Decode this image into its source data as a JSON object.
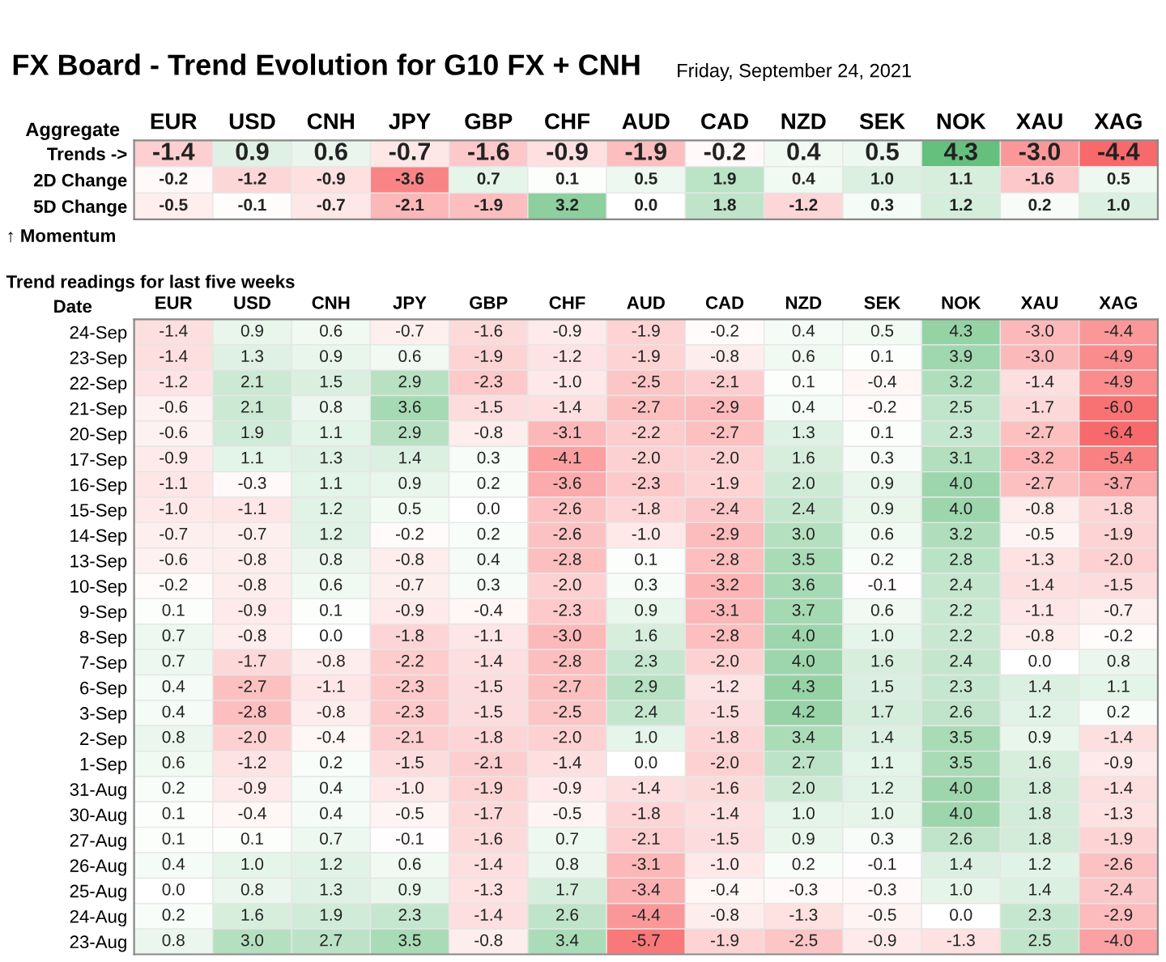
{
  "chart_data": [
    {
      "type": "heatmap",
      "data_labels": true,
      "title": "FX Board - Trend Evolution for G10 FX + CNH",
      "subtitle": "Friday, September 24, 2021",
      "ylabel": "Aggregate",
      "categories": [
        "EUR",
        "USD",
        "CNH",
        "JPY",
        "GBP",
        "CHF",
        "AUD",
        "CAD",
        "NZD",
        "SEK",
        "NOK",
        "XAU",
        "XAG"
      ],
      "y_categories": [
        "Trends ->",
        "2D Change",
        "5D Change"
      ],
      "cells": [
        [
          -1.4,
          0.9,
          0.6,
          -0.7,
          -1.6,
          -0.9,
          -1.9,
          -0.2,
          0.4,
          0.5,
          4.3,
          -3.0,
          -4.4
        ],
        [
          -0.2,
          -1.2,
          -0.9,
          -3.6,
          0.7,
          0.1,
          0.5,
          1.9,
          0.4,
          1.0,
          1.1,
          -1.6,
          0.5
        ],
        [
          -0.5,
          -0.1,
          -0.7,
          -2.1,
          -1.9,
          3.2,
          0.0,
          1.8,
          -1.2,
          0.3,
          1.2,
          0.2,
          1.0
        ]
      ],
      "cell_labels": [
        [
          "-1.4",
          "0.9",
          "0.6",
          "-0.7",
          "-1.6",
          "-0.9",
          "-1.9",
          "-0.2",
          "0.4",
          "0.5",
          "4.3",
          "-3.0",
          "-4.4"
        ],
        [
          "-0.2",
          "-1.2",
          "-0.9",
          "-3.6",
          "0.7",
          "0.1",
          "0.5",
          "1.9",
          "0.4",
          "1.0",
          "1.1",
          "-1.6",
          "0.5"
        ],
        [
          "-0.5",
          "-0.1",
          "-0.7",
          "-2.1",
          "-1.9",
          "3.2",
          "0.0",
          "1.8",
          "-1.2",
          "0.3",
          "1.2",
          "0.2",
          "1.0"
        ]
      ],
      "annotations": [
        "↑ Momentum"
      ]
    },
    {
      "type": "heatmap",
      "data_labels": true,
      "title": "Trend readings for last five weeks",
      "ylabel": "Date",
      "categories": [
        "EUR",
        "USD",
        "CNH",
        "JPY",
        "GBP",
        "CHF",
        "AUD",
        "CAD",
        "NZD",
        "SEK",
        "NOK",
        "XAU",
        "XAG"
      ],
      "y_categories": [
        "24-Sep",
        "23-Sep",
        "22-Sep",
        "21-Sep",
        "20-Sep",
        "17-Sep",
        "16-Sep",
        "15-Sep",
        "14-Sep",
        "13-Sep",
        "10-Sep",
        "9-Sep",
        "8-Sep",
        "7-Sep",
        "6-Sep",
        "3-Sep",
        "2-Sep",
        "1-Sep",
        "31-Aug",
        "30-Aug",
        "27-Aug",
        "26-Aug",
        "25-Aug",
        "24-Aug",
        "23-Aug"
      ],
      "cells": [
        [
          -1.4,
          0.9,
          0.6,
          -0.7,
          -1.6,
          -0.9,
          -1.9,
          -0.2,
          0.4,
          0.5,
          4.3,
          -3.0,
          -4.4
        ],
        [
          -1.4,
          1.3,
          0.9,
          0.6,
          -1.9,
          -1.2,
          -1.9,
          -0.8,
          0.6,
          0.1,
          3.9,
          -3.0,
          -4.9
        ],
        [
          -1.2,
          2.1,
          1.5,
          2.9,
          -2.3,
          -1.0,
          -2.5,
          -2.1,
          0.1,
          -0.4,
          3.2,
          -1.4,
          -4.9
        ],
        [
          -0.6,
          2.1,
          0.8,
          3.6,
          -1.5,
          -1.4,
          -2.7,
          -2.9,
          0.4,
          -0.2,
          2.5,
          -1.7,
          -6.0
        ],
        [
          -0.6,
          1.9,
          1.1,
          2.9,
          -0.8,
          -3.1,
          -2.2,
          -2.7,
          1.3,
          0.1,
          2.3,
          -2.7,
          -6.4
        ],
        [
          -0.9,
          1.1,
          1.3,
          1.4,
          0.3,
          -4.1,
          -2.0,
          -2.0,
          1.6,
          0.3,
          3.1,
          -3.2,
          -5.4
        ],
        [
          -1.1,
          -0.3,
          1.1,
          0.9,
          0.2,
          -3.6,
          -2.3,
          -1.9,
          2.0,
          0.9,
          4.0,
          -2.7,
          -3.7
        ],
        [
          -1.0,
          -1.1,
          1.2,
          0.5,
          0.0,
          -2.6,
          -1.8,
          -2.4,
          2.4,
          0.9,
          4.0,
          -0.8,
          -1.8
        ],
        [
          -0.7,
          -0.7,
          1.2,
          -0.2,
          0.2,
          -2.6,
          -1.0,
          -2.9,
          3.0,
          0.6,
          3.2,
          -0.5,
          -1.9
        ],
        [
          -0.6,
          -0.8,
          0.8,
          -0.8,
          0.4,
          -2.8,
          0.1,
          -2.8,
          3.5,
          0.2,
          2.8,
          -1.3,
          -2.0
        ],
        [
          -0.2,
          -0.8,
          0.6,
          -0.7,
          0.3,
          -2.0,
          0.3,
          -3.2,
          3.6,
          -0.1,
          2.4,
          -1.4,
          -1.5
        ],
        [
          0.1,
          -0.9,
          0.1,
          -0.9,
          -0.4,
          -2.3,
          0.9,
          -3.1,
          3.7,
          0.6,
          2.2,
          -1.1,
          -0.7
        ],
        [
          0.7,
          -0.8,
          0.0,
          -1.8,
          -1.1,
          -3.0,
          1.6,
          -2.8,
          4.0,
          1.0,
          2.2,
          -0.8,
          -0.2
        ],
        [
          0.7,
          -1.7,
          -0.8,
          -2.2,
          -1.4,
          -2.8,
          2.3,
          -2.0,
          4.0,
          1.6,
          2.4,
          0.0,
          0.8
        ],
        [
          0.4,
          -2.7,
          -1.1,
          -2.3,
          -1.5,
          -2.7,
          2.9,
          -1.2,
          4.3,
          1.5,
          2.3,
          1.4,
          1.1
        ],
        [
          0.4,
          -2.8,
          -0.8,
          -2.3,
          -1.5,
          -2.5,
          2.4,
          -1.5,
          4.2,
          1.7,
          2.6,
          1.2,
          0.2
        ],
        [
          0.8,
          -2.0,
          -0.4,
          -2.1,
          -1.8,
          -2.0,
          1.0,
          -1.8,
          3.4,
          1.4,
          3.5,
          0.9,
          -1.4
        ],
        [
          0.6,
          -1.2,
          0.2,
          -1.5,
          -2.1,
          -1.4,
          0.0,
          -2.0,
          2.7,
          1.1,
          3.5,
          1.6,
          -0.9
        ],
        [
          0.2,
          -0.9,
          0.4,
          -1.0,
          -1.9,
          -0.9,
          -1.4,
          -1.6,
          2.0,
          1.2,
          4.0,
          1.8,
          -1.4
        ],
        [
          0.1,
          -0.4,
          0.4,
          -0.5,
          -1.7,
          -0.5,
          -1.8,
          -1.4,
          1.0,
          1.0,
          4.0,
          1.8,
          -1.3
        ],
        [
          0.1,
          0.1,
          0.7,
          -0.1,
          -1.6,
          0.7,
          -2.1,
          -1.5,
          0.9,
          0.3,
          2.6,
          1.8,
          -1.9
        ],
        [
          0.4,
          1.0,
          1.2,
          0.6,
          -1.4,
          0.8,
          -3.1,
          -1.0,
          0.2,
          -0.1,
          1.4,
          1.2,
          -2.6
        ],
        [
          0.0,
          0.8,
          1.3,
          0.9,
          -1.3,
          1.7,
          -3.4,
          -0.4,
          -0.3,
          -0.3,
          1.0,
          1.4,
          -2.4
        ],
        [
          0.2,
          1.6,
          1.9,
          2.3,
          -1.4,
          2.6,
          -4.4,
          -0.8,
          -1.3,
          -0.5,
          0.0,
          2.3,
          -2.9
        ],
        [
          0.8,
          3.0,
          2.7,
          3.5,
          -0.8,
          3.4,
          -5.7,
          -1.9,
          -2.5,
          -0.9,
          -1.3,
          2.5,
          -4.0
        ]
      ],
      "cell_labels": [
        [
          "-1.4",
          "0.9",
          "0.6",
          "-0.7",
          "-1.6",
          "-0.9",
          "-1.9",
          "-0.2",
          "0.4",
          "0.5",
          "4.3",
          "-3.0",
          "-4.4"
        ],
        [
          "-1.4",
          "1.3",
          "0.9",
          "0.6",
          "-1.9",
          "-1.2",
          "-1.9",
          "-0.8",
          "0.6",
          "0.1",
          "3.9",
          "-3.0",
          "-4.9"
        ],
        [
          "-1.2",
          "2.1",
          "1.5",
          "2.9",
          "-2.3",
          "-1.0",
          "-2.5",
          "-2.1",
          "0.1",
          "-0.4",
          "3.2",
          "-1.4",
          "-4.9"
        ],
        [
          "-0.6",
          "2.1",
          "0.8",
          "3.6",
          "-1.5",
          "-1.4",
          "-2.7",
          "-2.9",
          "0.4",
          "-0.2",
          "2.5",
          "-1.7",
          "-6.0"
        ],
        [
          "-0.6",
          "1.9",
          "1.1",
          "2.9",
          "-0.8",
          "-3.1",
          "-2.2",
          "-2.7",
          "1.3",
          "0.1",
          "2.3",
          "-2.7",
          "-6.4"
        ],
        [
          "-0.9",
          "1.1",
          "1.3",
          "1.4",
          "0.3",
          "-4.1",
          "-2.0",
          "-2.0",
          "1.6",
          "0.3",
          "3.1",
          "-3.2",
          "-5.4"
        ],
        [
          "-1.1",
          "-0.3",
          "1.1",
          "0.9",
          "0.2",
          "-3.6",
          "-2.3",
          "-1.9",
          "2.0",
          "0.9",
          "4.0",
          "-2.7",
          "-3.7"
        ],
        [
          "-1.0",
          "-1.1",
          "1.2",
          "0.5",
          "0.0",
          "-2.6",
          "-1.8",
          "-2.4",
          "2.4",
          "0.9",
          "4.0",
          "-0.8",
          "-1.8"
        ],
        [
          "-0.7",
          "-0.7",
          "1.2",
          "-0.2",
          "0.2",
          "-2.6",
          "-1.0",
          "-2.9",
          "3.0",
          "0.6",
          "3.2",
          "-0.5",
          "-1.9"
        ],
        [
          "-0.6",
          "-0.8",
          "0.8",
          "-0.8",
          "0.4",
          "-2.8",
          "0.1",
          "-2.8",
          "3.5",
          "0.2",
          "2.8",
          "-1.3",
          "-2.0"
        ],
        [
          "-0.2",
          "-0.8",
          "0.6",
          "-0.7",
          "0.3",
          "-2.0",
          "0.3",
          "-3.2",
          "3.6",
          "-0.1",
          "2.4",
          "-1.4",
          "-1.5"
        ],
        [
          "0.1",
          "-0.9",
          "0.1",
          "-0.9",
          "-0.4",
          "-2.3",
          "0.9",
          "-3.1",
          "3.7",
          "0.6",
          "2.2",
          "-1.1",
          "-0.7"
        ],
        [
          "0.7",
          "-0.8",
          "0.0",
          "-1.8",
          "-1.1",
          "-3.0",
          "1.6",
          "-2.8",
          "4.0",
          "1.0",
          "2.2",
          "-0.8",
          "-0.2"
        ],
        [
          "0.7",
          "-1.7",
          "-0.8",
          "-2.2",
          "-1.4",
          "-2.8",
          "2.3",
          "-2.0",
          "4.0",
          "1.6",
          "2.4",
          "0.0",
          "0.8"
        ],
        [
          "0.4",
          "-2.7",
          "-1.1",
          "-2.3",
          "-1.5",
          "-2.7",
          "2.9",
          "-1.2",
          "4.3",
          "1.5",
          "2.3",
          "1.4",
          "1.1"
        ],
        [
          "0.4",
          "-2.8",
          "-0.8",
          "-2.3",
          "-1.5",
          "-2.5",
          "2.4",
          "-1.5",
          "4.2",
          "1.7",
          "2.6",
          "1.2",
          "0.2"
        ],
        [
          "0.8",
          "-2.0",
          "-0.4",
          "-2.1",
          "-1.8",
          "-2.0",
          "1.0",
          "-1.8",
          "3.4",
          "1.4",
          "3.5",
          "0.9",
          "-1.4"
        ],
        [
          "0.6",
          "-1.2",
          "0.2",
          "-1.5",
          "-2.1",
          "-1.4",
          "0.0",
          "-2.0",
          "2.7",
          "1.1",
          "3.5",
          "1.6",
          "-0.9"
        ],
        [
          "0.2",
          "-0.9",
          "0.4",
          "-1.0",
          "-1.9",
          "-0.9",
          "-1.4",
          "-1.6",
          "2.0",
          "1.2",
          "4.0",
          "1.8",
          "-1.4"
        ],
        [
          "0.1",
          "-0.4",
          "0.4",
          "-0.5",
          "-1.7",
          "-0.5",
          "-1.8",
          "-1.4",
          "1.0",
          "1.0",
          "4.0",
          "1.8",
          "-1.3"
        ],
        [
          "0.1",
          "0.1",
          "0.7",
          "-0.1",
          "-1.6",
          "0.7",
          "-2.1",
          "-1.5",
          "0.9",
          "0.3",
          "2.6",
          "1.8",
          "-1.9"
        ],
        [
          "0.4",
          "1.0",
          "1.2",
          "0.6",
          "-1.4",
          "0.8",
          "-3.1",
          "-1.0",
          "0.2",
          "-0.1",
          "1.4",
          "1.2",
          "-2.6"
        ],
        [
          "0.0",
          "0.8",
          "1.3",
          "0.9",
          "-1.3",
          "1.7",
          "-3.4",
          "-0.4",
          "-0.3",
          "-0.3",
          "1.0",
          "1.4",
          "-2.4"
        ],
        [
          "0.2",
          "1.6",
          "1.9",
          "2.3",
          "-1.4",
          "2.6",
          "-4.4",
          "-0.8",
          "-1.3",
          "-0.5",
          "0.0",
          "2.3",
          "-2.9"
        ],
        [
          "0.8",
          "3.0",
          "2.7",
          "3.5",
          "-0.8",
          "3.4",
          "-5.7",
          "-1.9",
          "-2.5",
          "-0.9",
          "-1.3",
          "2.5",
          "-4.0"
        ]
      ]
    }
  ]
}
